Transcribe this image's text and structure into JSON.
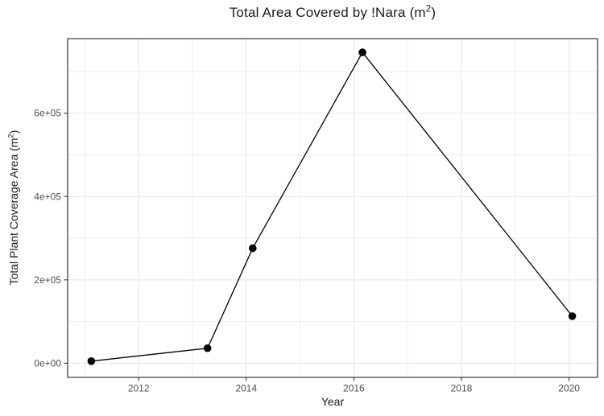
{
  "chart_data": {
    "type": "line",
    "title": {
      "prefix": "Total Area Covered by !Nara (m",
      "superscript": "2",
      "suffix": ")"
    },
    "xlabel": "Year",
    "ylabel": {
      "prefix": "Total Plant Coverage Area (m",
      "superscript": "2",
      "suffix": ")"
    },
    "series": [
      {
        "name": "total-plant-coverage-area",
        "x": [
          2011.12,
          2013.28,
          2014.12,
          2016.16,
          2020.06
        ],
        "y": [
          5000,
          36000,
          276000,
          746000,
          113000
        ]
      }
    ],
    "x_axis": {
      "major_ticks": [
        {
          "value": 2012,
          "label": "2012"
        },
        {
          "value": 2014,
          "label": "2014"
        },
        {
          "value": 2016,
          "label": "2016"
        },
        {
          "value": 2018,
          "label": "2018"
        },
        {
          "value": 2020,
          "label": "2020"
        }
      ],
      "minor_ticks": [
        2011,
        2013,
        2015,
        2017,
        2019
      ],
      "range": [
        2010.68,
        2020.53
      ]
    },
    "y_axis": {
      "major_ticks": [
        {
          "value": 0,
          "label": "0e+00"
        },
        {
          "value": 200000,
          "label": "2e+05"
        },
        {
          "value": 400000,
          "label": "4e+05"
        },
        {
          "value": 600000,
          "label": "6e+05"
        }
      ],
      "minor_ticks": [
        100000,
        300000,
        500000,
        700000
      ],
      "range": [
        -34000,
        779000
      ]
    },
    "style": {
      "line_color": "#000000",
      "point_color": "#000000",
      "grid_color": "#e8e8e8",
      "panel_border_color": "#333333",
      "tick_mark_color": "#333333",
      "axis_text_color": "#4d4d4d",
      "title_color": "#1a1a1a",
      "background": "#ffffff",
      "grid": "on",
      "legend": "none"
    }
  }
}
